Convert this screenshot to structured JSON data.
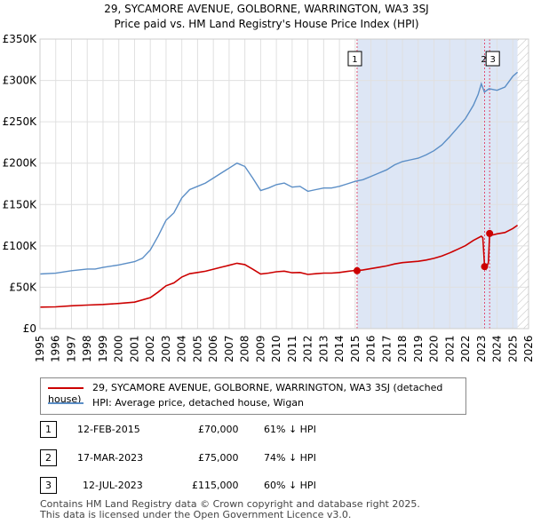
{
  "title_line1": "29, SYCAMORE AVENUE, GOLBORNE, WARRINGTON, WA3 3SJ",
  "title_line2": "Price paid vs. HM Land Registry's House Price Index (HPI)",
  "colors": {
    "price_paid": "#cc0000",
    "hpi": "#5b8ec6",
    "highlight": "#dde6f5",
    "marker_line": "#e05070"
  },
  "chart_data": {
    "type": "line",
    "xlim": [
      1995,
      2026
    ],
    "ylim": [
      0,
      350000
    ],
    "x_ticks": [
      "1995",
      "1996",
      "1997",
      "1998",
      "1999",
      "2000",
      "2001",
      "2002",
      "2003",
      "2004",
      "2005",
      "2006",
      "2007",
      "2008",
      "2009",
      "2010",
      "2011",
      "2012",
      "2013",
      "2014",
      "2015",
      "2016",
      "2017",
      "2018",
      "2019",
      "2020",
      "2021",
      "2022",
      "2023",
      "2024",
      "2025",
      "2026"
    ],
    "y_ticks": [
      {
        "value": 0,
        "label": "£0"
      },
      {
        "value": 50000,
        "label": "£50K"
      },
      {
        "value": 100000,
        "label": "£100K"
      },
      {
        "value": 150000,
        "label": "£150K"
      },
      {
        "value": 200000,
        "label": "£200K"
      },
      {
        "value": 250000,
        "label": "£250K"
      },
      {
        "value": 300000,
        "label": "£300K"
      },
      {
        "value": 350000,
        "label": "£350K"
      }
    ],
    "highlight_range": [
      2015.12,
      2025.3
    ],
    "series": [
      {
        "name": "HPI: Average price, detached house, Wigan",
        "x": [
          1995,
          1996,
          1997,
          1998,
          1998.5,
          1999,
          2000,
          2001,
          2001.5,
          2002,
          2002.5,
          2003,
          2003.5,
          2004,
          2004.5,
          2005,
          2005.5,
          2006,
          2006.5,
          2007,
          2007.5,
          2008,
          2008.5,
          2009,
          2009.5,
          2010,
          2010.5,
          2011,
          2011.5,
          2012,
          2012.5,
          2013,
          2013.5,
          2014,
          2014.5,
          2015,
          2015.5,
          2016,
          2016.5,
          2017,
          2017.5,
          2018,
          2018.5,
          2019,
          2019.5,
          2020,
          2020.5,
          2021,
          2021.5,
          2022,
          2022.5,
          2022.8,
          2023,
          2023.2,
          2023.5,
          2024,
          2024.5,
          2025,
          2025.3
        ],
        "values": [
          66000,
          67000,
          70000,
          72000,
          72000,
          74000,
          77000,
          81000,
          85000,
          95000,
          112000,
          131000,
          140000,
          158000,
          168000,
          172000,
          176000,
          182000,
          188000,
          194000,
          200000,
          196000,
          182000,
          167000,
          170000,
          174000,
          176000,
          171000,
          172000,
          166000,
          168000,
          170000,
          170000,
          172000,
          175000,
          178000,
          180000,
          184000,
          188000,
          192000,
          198000,
          202000,
          204000,
          206000,
          210000,
          215000,
          222000,
          232000,
          243000,
          254000,
          270000,
          283000,
          296000,
          286000,
          290000,
          288000,
          292000,
          305000,
          310000
        ]
      },
      {
        "name": "29, SYCAMORE AVENUE, GOLBORNE, WARRINGTON, WA3 3SJ (detached house)",
        "x": [
          1995,
          1996,
          1997,
          1998,
          1999,
          2000,
          2001,
          2002,
          2002.5,
          2003,
          2003.5,
          2004,
          2004.5,
          2005,
          2005.5,
          2006,
          2006.5,
          2007,
          2007.5,
          2008,
          2008.5,
          2009,
          2009.5,
          2010,
          2010.5,
          2011,
          2011.5,
          2012,
          2012.5,
          2013,
          2013.5,
          2014,
          2014.5,
          2015,
          2015.12,
          2015.5,
          2016,
          2016.5,
          2017,
          2017.5,
          2018,
          2018.5,
          2019,
          2019.5,
          2020,
          2020.5,
          2021,
          2021.5,
          2022,
          2022.5,
          2023,
          2023.1,
          2023.21,
          2023.3,
          2023.45,
          2023.53,
          2023.7,
          2024,
          2024.5,
          2025,
          2025.3
        ],
        "values": [
          26000,
          26300,
          27600,
          28400,
          29200,
          30400,
          32000,
          37500,
          44200,
          51700,
          55300,
          62400,
          66300,
          67900,
          69400,
          71800,
          74200,
          76600,
          79000,
          77400,
          71800,
          65900,
          67100,
          68700,
          69500,
          67500,
          67900,
          65500,
          66300,
          67100,
          67100,
          67900,
          69100,
          70300,
          70000,
          71000,
          72600,
          74200,
          75800,
          78200,
          79800,
          80600,
          81400,
          82900,
          84900,
          87700,
          91600,
          95900,
          100300,
          106600,
          111700,
          110000,
          75000,
          72000,
          80000,
          115000,
          113000,
          114600,
          116200,
          121000,
          125000
        ]
      }
    ],
    "transactions": [
      {
        "num": "1",
        "x": 2015.12,
        "value": 70000
      },
      {
        "num": "2",
        "x": 2023.21,
        "value": 75000
      },
      {
        "num": "3",
        "x": 2023.53,
        "value": 115000
      }
    ]
  },
  "legend": {
    "price_paid_label": "29, SYCAMORE AVENUE, GOLBORNE, WARRINGTON, WA3 3SJ (detached house)",
    "hpi_label": "HPI: Average price, detached house, Wigan"
  },
  "transactions_table": [
    {
      "num": "1",
      "date": "12-FEB-2015",
      "price": "£70,000",
      "hpi": "61% ↓ HPI"
    },
    {
      "num": "2",
      "date": "17-MAR-2023",
      "price": "£75,000",
      "hpi": "74% ↓ HPI"
    },
    {
      "num": "3",
      "date": "12-JUL-2023",
      "price": "£115,000",
      "hpi": "60% ↓ HPI"
    }
  ],
  "footer_line1": "Contains HM Land Registry data © Crown copyright and database right 2025.",
  "footer_line2": "This data is licensed under the Open Government Licence v3.0."
}
